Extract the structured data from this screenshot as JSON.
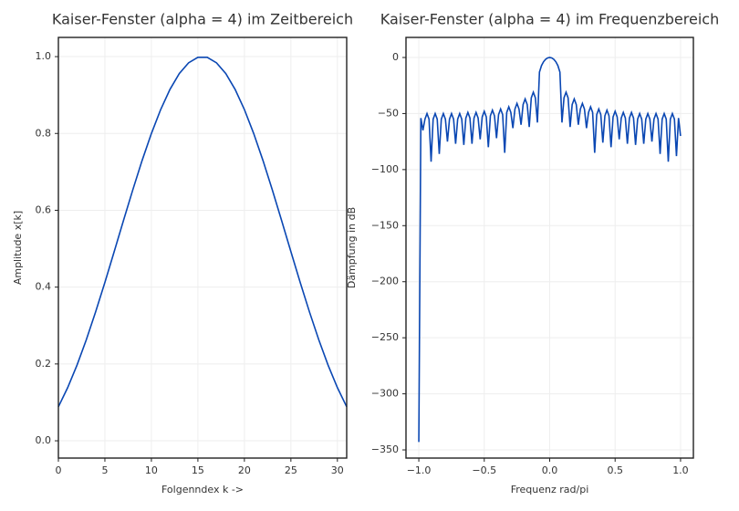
{
  "chart_data": [
    {
      "type": "line",
      "title": "Kaiser-Fenster (alpha = 4) im Zeitbereich",
      "xlabel": "Folgenndex k ->",
      "ylabel": "Amplitude x[k]",
      "color": "#0a47b3",
      "grid": true,
      "x": [
        0,
        1,
        2,
        3,
        4,
        5,
        6,
        7,
        8,
        9,
        10,
        11,
        12,
        13,
        14,
        15,
        16,
        17,
        18,
        19,
        20,
        21,
        22,
        23,
        24,
        25,
        26,
        27,
        28,
        29,
        30,
        31
      ],
      "values": [
        0.0885,
        0.1385,
        0.1969,
        0.2628,
        0.3352,
        0.4122,
        0.4924,
        0.5734,
        0.6532,
        0.7295,
        0.7999,
        0.8623,
        0.9148,
        0.9559,
        0.9839,
        0.9982,
        0.9982,
        0.9839,
        0.9559,
        0.9148,
        0.8623,
        0.7999,
        0.7295,
        0.6532,
        0.5734,
        0.4924,
        0.4122,
        0.3352,
        0.2628,
        0.1969,
        0.1385,
        0.0885
      ],
      "xlim": [
        0,
        31
      ],
      "ylim": [
        -0.045,
        1.05
      ],
      "xticks": [
        0,
        5,
        10,
        15,
        20,
        25,
        30
      ],
      "yticks": [
        {
          "value": 0,
          "label": "0.0"
        },
        {
          "value": 0.2,
          "label": "0.2"
        },
        {
          "value": 0.4,
          "label": "0.4"
        },
        {
          "value": 0.6,
          "label": "0.6"
        },
        {
          "value": 0.8,
          "label": "0.8"
        },
        {
          "value": 1,
          "label": "1.0"
        }
      ]
    },
    {
      "type": "line",
      "title": "Kaiser-Fenster (alpha = 4) im Frequenzbereich",
      "xlabel": "Frequenz rad/pi",
      "ylabel": "Dämpfung in dB",
      "color": "#0a47b3",
      "grid": true,
      "x": [
        -1,
        -0.984375,
        -0.96875,
        -0.953125,
        -0.9375,
        -0.921875,
        -0.90625,
        -0.890625,
        -0.875,
        -0.859375,
        -0.84375,
        -0.828125,
        -0.8125,
        -0.796875,
        -0.78125,
        -0.765625,
        -0.75,
        -0.734375,
        -0.71875,
        -0.703125,
        -0.6875,
        -0.671875,
        -0.65625,
        -0.640625,
        -0.625,
        -0.609375,
        -0.59375,
        -0.578125,
        -0.5625,
        -0.546875,
        -0.53125,
        -0.515625,
        -0.5,
        -0.484375,
        -0.46875,
        -0.453125,
        -0.4375,
        -0.421875,
        -0.40625,
        -0.390625,
        -0.375,
        -0.359375,
        -0.34375,
        -0.328125,
        -0.3125,
        -0.296875,
        -0.28125,
        -0.265625,
        -0.25,
        -0.234375,
        -0.21875,
        -0.203125,
        -0.1875,
        -0.171875,
        -0.15625,
        -0.140625,
        -0.125,
        -0.109375,
        -0.09375,
        -0.078125,
        -0.0625,
        -0.046875,
        -0.03125,
        -0.015625,
        0,
        0.015625,
        0.03125,
        0.046875,
        0.0625,
        0.078125,
        0.09375,
        0.109375,
        0.125,
        0.140625,
        0.15625,
        0.171875,
        0.1875,
        0.203125,
        0.21875,
        0.234375,
        0.25,
        0.265625,
        0.28125,
        0.296875,
        0.3125,
        0.328125,
        0.34375,
        0.359375,
        0.375,
        0.390625,
        0.40625,
        0.421875,
        0.4375,
        0.453125,
        0.46875,
        0.484375,
        0.5,
        0.515625,
        0.53125,
        0.546875,
        0.5625,
        0.578125,
        0.59375,
        0.609375,
        0.625,
        0.640625,
        0.65625,
        0.671875,
        0.6875,
        0.703125,
        0.71875,
        0.734375,
        0.75,
        0.765625,
        0.78125,
        0.796875,
        0.8125,
        0.828125,
        0.84375,
        0.859375,
        0.875,
        0.890625,
        0.90625,
        0.921875,
        0.9375,
        0.953125,
        0.96875,
        0.984375,
        1
      ],
      "values": [
        -343,
        -54,
        -65,
        -55,
        -50,
        -55,
        -93,
        -55,
        -50,
        -55,
        -86,
        -55,
        -50,
        -55,
        -75,
        -55,
        -50,
        -55,
        -77,
        -55,
        -50,
        -55,
        -78,
        -54,
        -49,
        -54,
        -77,
        -54,
        -49,
        -54,
        -73,
        -53,
        -48,
        -53,
        -80,
        -52,
        -47,
        -52,
        -72,
        -51,
        -46,
        -51,
        -85,
        -49,
        -44,
        -49,
        -63,
        -46,
        -41,
        -46,
        -60,
        -42,
        -37,
        -42,
        -62,
        -36,
        -31,
        -36,
        -58,
        -13,
        -7.2,
        -3.8,
        -1.6,
        -0.4,
        0,
        -0.4,
        -1.6,
        -3.8,
        -7.2,
        -13,
        -58,
        -36,
        -31,
        -36,
        -62,
        -42,
        -37,
        -42,
        -60,
        -46,
        -41,
        -46,
        -63,
        -49,
        -44,
        -49,
        -85,
        -51,
        -46,
        -51,
        -76,
        -52,
        -47,
        -52,
        -80,
        -53,
        -48,
        -53,
        -73,
        -54,
        -49,
        -54,
        -77,
        -54,
        -49,
        -54,
        -78,
        -55,
        -50,
        -55,
        -77,
        -55,
        -50,
        -55,
        -75,
        -55,
        -50,
        -55,
        -86,
        -55,
        -50,
        -55,
        -93,
        -55,
        -50,
        -55,
        -88,
        -54,
        -70
      ],
      "xlim": [
        -1.098,
        1.098
      ],
      "ylim": [
        -357.3,
        17.9
      ],
      "xticks": [
        {
          "value": -1,
          "label": "−1.0"
        },
        {
          "value": -0.5,
          "label": "−0.5"
        },
        {
          "value": 0,
          "label": "0.0"
        },
        {
          "value": 0.5,
          "label": "0.5"
        },
        {
          "value": 1,
          "label": "1.0"
        }
      ],
      "yticks": [
        0,
        {
          "value": -50,
          "label": "−50"
        },
        {
          "value": -100,
          "label": "−100"
        },
        {
          "value": -150,
          "label": "−150"
        },
        {
          "value": -200,
          "label": "−200"
        },
        {
          "value": -250,
          "label": "−250"
        },
        {
          "value": -300,
          "label": "−300"
        },
        {
          "value": -350,
          "label": "−350"
        }
      ]
    }
  ]
}
